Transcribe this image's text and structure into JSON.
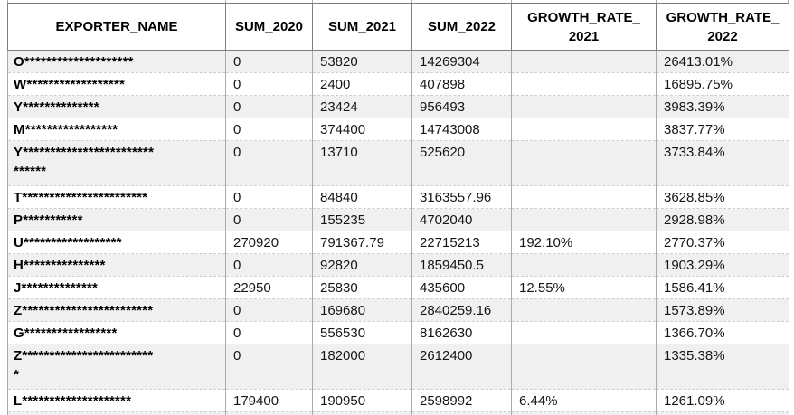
{
  "table": {
    "colors": {
      "band": "#f0f0f0",
      "border_dark": "#7f7f7f",
      "border_mid": "#ababab",
      "border_light": "#cecece"
    },
    "columns": [
      {
        "key": "exporter",
        "label": "EXPORTER_NAME"
      },
      {
        "key": "sum_2020",
        "label": "SUM_2020"
      },
      {
        "key": "sum_2021",
        "label": "SUM_2021"
      },
      {
        "key": "sum_2022",
        "label": "SUM_2022"
      },
      {
        "key": "growth_2021",
        "label": "GROWTH_RATE_\n2021"
      },
      {
        "key": "growth_2022",
        "label": "GROWTH_RATE_\n2022"
      }
    ],
    "rows": [
      {
        "exporter": "O********************",
        "sum_2020": "0",
        "sum_2021": "53820",
        "sum_2022": "14269304",
        "growth_2021": "",
        "growth_2022": "26413.01%"
      },
      {
        "exporter": "W******************",
        "sum_2020": "0",
        "sum_2021": "2400",
        "sum_2022": "407898",
        "growth_2021": "",
        "growth_2022": "16895.75%"
      },
      {
        "exporter": "Y**************",
        "sum_2020": "0",
        "sum_2021": "23424",
        "sum_2022": "956493",
        "growth_2021": "",
        "growth_2022": "3983.39%"
      },
      {
        "exporter": "M*****************",
        "sum_2020": "0",
        "sum_2021": "374400",
        "sum_2022": "14743008",
        "growth_2021": "",
        "growth_2022": "3837.77%"
      },
      {
        "exporter": "Y************************\n******",
        "sum_2020": "0",
        "sum_2021": "13710",
        "sum_2022": "525620",
        "growth_2021": "",
        "growth_2022": "3733.84%"
      },
      {
        "exporter": "T***********************",
        "sum_2020": "0",
        "sum_2021": "84840",
        "sum_2022": "3163557.96",
        "growth_2021": "",
        "growth_2022": "3628.85%"
      },
      {
        "exporter": "P***********",
        "sum_2020": "0",
        "sum_2021": "155235",
        "sum_2022": "4702040",
        "growth_2021": "",
        "growth_2022": "2928.98%"
      },
      {
        "exporter": "U******************",
        "sum_2020": "270920",
        "sum_2021": "791367.79",
        "sum_2022": "22715213",
        "growth_2021": "192.10%",
        "growth_2022": "2770.37%"
      },
      {
        "exporter": "H***************",
        "sum_2020": "0",
        "sum_2021": "92820",
        "sum_2022": "1859450.5",
        "growth_2021": "",
        "growth_2022": "1903.29%"
      },
      {
        "exporter": "J**************",
        "sum_2020": "22950",
        "sum_2021": "25830",
        "sum_2022": "435600",
        "growth_2021": "12.55%",
        "growth_2022": "1586.41%"
      },
      {
        "exporter": "Z************************",
        "sum_2020": "0",
        "sum_2021": "169680",
        "sum_2022": "2840259.16",
        "growth_2021": "",
        "growth_2022": "1573.89%"
      },
      {
        "exporter": "G*****************",
        "sum_2020": "0",
        "sum_2021": "556530",
        "sum_2022": "8162630",
        "growth_2021": "",
        "growth_2022": "1366.70%"
      },
      {
        "exporter": "Z************************\n*",
        "sum_2020": "0",
        "sum_2021": "182000",
        "sum_2022": "2612400",
        "growth_2021": "",
        "growth_2022": "1335.38%"
      },
      {
        "exporter": "L********************",
        "sum_2020": "179400",
        "sum_2021": "190950",
        "sum_2022": "2598992",
        "growth_2021": "6.44%",
        "growth_2022": "1261.09%"
      }
    ]
  }
}
